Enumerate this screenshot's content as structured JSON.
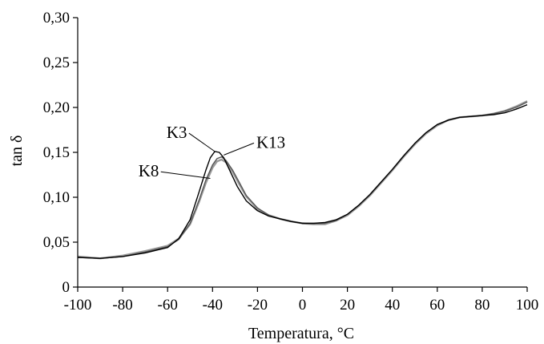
{
  "chart_data": {
    "type": "line",
    "xlabel": "Temperatura, °C",
    "ylabel": "tan δ",
    "xlim": [
      -100,
      100
    ],
    "ylim": [
      0,
      0.3
    ],
    "x_ticks": [
      -100,
      -80,
      -60,
      -40,
      -20,
      0,
      20,
      40,
      60,
      80,
      100
    ],
    "x_tick_labels": [
      "-100",
      "-80",
      "-60",
      "-40",
      "-20",
      "0",
      "20",
      "40",
      "60",
      "80",
      "100"
    ],
    "y_ticks": [
      0,
      0.05,
      0.1,
      0.15,
      0.2,
      0.25,
      0.3
    ],
    "y_tick_labels": [
      "0",
      "0,05",
      "0,10",
      "0,15",
      "0,20",
      "0,25",
      "0,30"
    ],
    "grid": false,
    "legend": "none",
    "series": [
      {
        "name": "K3",
        "color": "#000000",
        "x": [
          -100,
          -90,
          -80,
          -70,
          -60,
          -55,
          -50,
          -46,
          -43,
          -41,
          -39,
          -37,
          -35,
          -32,
          -29,
          -25,
          -20,
          -15,
          -10,
          -5,
          0,
          5,
          10,
          15,
          20,
          25,
          30,
          35,
          40,
          45,
          50,
          55,
          60,
          65,
          70,
          75,
          80,
          85,
          90,
          95,
          100
        ],
        "y": [
          0.033,
          0.032,
          0.034,
          0.038,
          0.044,
          0.054,
          0.075,
          0.106,
          0.13,
          0.144,
          0.151,
          0.15,
          0.144,
          0.128,
          0.112,
          0.096,
          0.085,
          0.079,
          0.076,
          0.073,
          0.071,
          0.071,
          0.072,
          0.075,
          0.081,
          0.091,
          0.103,
          0.117,
          0.131,
          0.146,
          0.16,
          0.172,
          0.181,
          0.186,
          0.189,
          0.19,
          0.191,
          0.192,
          0.194,
          0.198,
          0.203
        ]
      },
      {
        "name": "K8",
        "color": "#999999",
        "x": [
          -100,
          -90,
          -80,
          -70,
          -60,
          -55,
          -50,
          -46,
          -43,
          -40,
          -38,
          -36,
          -34,
          -31,
          -28,
          -25,
          -20,
          -15,
          -10,
          -5,
          0,
          5,
          10,
          15,
          20,
          25,
          30,
          35,
          40,
          45,
          50,
          55,
          60,
          65,
          70,
          75,
          80,
          85,
          90,
          95,
          100
        ],
        "y": [
          0.034,
          0.032,
          0.035,
          0.04,
          0.046,
          0.054,
          0.07,
          0.095,
          0.116,
          0.133,
          0.14,
          0.142,
          0.139,
          0.128,
          0.114,
          0.101,
          0.087,
          0.08,
          0.076,
          0.073,
          0.071,
          0.07,
          0.07,
          0.074,
          0.08,
          0.09,
          0.102,
          0.116,
          0.13,
          0.145,
          0.159,
          0.171,
          0.18,
          0.186,
          0.189,
          0.19,
          0.191,
          0.193,
          0.196,
          0.201,
          0.207
        ]
      },
      {
        "name": "K13",
        "color": "#555555",
        "x": [
          -100,
          -90,
          -80,
          -70,
          -60,
          -55,
          -50,
          -46,
          -43,
          -40,
          -38,
          -36,
          -34,
          -31,
          -28,
          -25,
          -20,
          -15,
          -10,
          -5,
          0,
          5,
          10,
          15,
          20,
          25,
          30,
          35,
          40,
          45,
          50,
          55,
          60,
          65,
          70,
          75,
          80,
          85,
          90,
          95,
          100
        ],
        "y": [
          0.033,
          0.032,
          0.034,
          0.039,
          0.045,
          0.053,
          0.071,
          0.097,
          0.119,
          0.136,
          0.143,
          0.145,
          0.141,
          0.13,
          0.116,
          0.102,
          0.088,
          0.08,
          0.076,
          0.073,
          0.071,
          0.071,
          0.071,
          0.074,
          0.081,
          0.091,
          0.103,
          0.117,
          0.131,
          0.146,
          0.16,
          0.172,
          0.181,
          0.186,
          0.189,
          0.19,
          0.191,
          0.193,
          0.196,
          0.2,
          0.206
        ]
      }
    ],
    "annotations": [
      {
        "text": "K3",
        "target_x": -39,
        "target_y": 0.151,
        "label_x": -60.5,
        "label_y": 0.166
      },
      {
        "text": "K13",
        "target_x": -35,
        "target_y": 0.147,
        "label_x": -20.5,
        "label_y": 0.155
      },
      {
        "text": "K8",
        "target_x": -41,
        "target_y": 0.121,
        "label_x": -73,
        "label_y": 0.123
      }
    ]
  }
}
